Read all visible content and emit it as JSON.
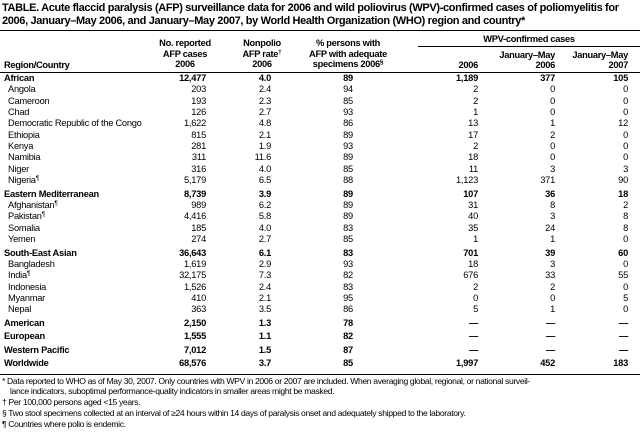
{
  "title": "TABLE. Acute flaccid paralysis (AFP) surveillance data for 2006 and wild poliovirus (WPV)-confirmed cases of poliomyelitis for 2006, January–May 2006, and January–May 2007, by World Health Organization (WHO) region and country*",
  "header": {
    "region_country": "Region/Country",
    "afp_cases": [
      "No. reported",
      "AFP cases",
      "2006"
    ],
    "afp_rate": [
      "Nonpolio",
      "AFP rate",
      "2006"
    ],
    "afp_rate_mark": "†",
    "adequate": [
      "% persons with",
      "AFP with adequate",
      "specimens 2006"
    ],
    "adequate_mark": "§",
    "wpv_group": "WPV-confirmed cases",
    "wpv_2006": "2006",
    "wpv_jm2006": [
      "January–May",
      "2006"
    ],
    "wpv_jm2007": [
      "January–May",
      "2007"
    ]
  },
  "rows": [
    {
      "type": "region",
      "name": "African",
      "mark": "",
      "v": [
        "12,477",
        "4.0",
        "89",
        "1,189",
        "377",
        "105"
      ]
    },
    {
      "type": "sub",
      "name": "Angola",
      "mark": "",
      "v": [
        "203",
        "2.4",
        "94",
        "2",
        "0",
        "0"
      ]
    },
    {
      "type": "sub",
      "name": "Cameroon",
      "mark": "",
      "v": [
        "193",
        "2.3",
        "85",
        "2",
        "0",
        "0"
      ]
    },
    {
      "type": "sub",
      "name": "Chad",
      "mark": "",
      "v": [
        "126",
        "2.7",
        "93",
        "1",
        "0",
        "0"
      ]
    },
    {
      "type": "sub",
      "name": "Democratic Republic of the Congo",
      "mark": "",
      "v": [
        "1,622",
        "4.8",
        "86",
        "13",
        "1",
        "12"
      ]
    },
    {
      "type": "sub",
      "name": "Ethiopia",
      "mark": "",
      "v": [
        "815",
        "2.1",
        "89",
        "17",
        "2",
        "0"
      ]
    },
    {
      "type": "sub",
      "name": "Kenya",
      "mark": "",
      "v": [
        "281",
        "1.9",
        "93",
        "2",
        "0",
        "0"
      ]
    },
    {
      "type": "sub",
      "name": "Namibia",
      "mark": "",
      "v": [
        "311",
        "11.6",
        "89",
        "18",
        "0",
        "0"
      ]
    },
    {
      "type": "sub",
      "name": "Niger",
      "mark": "",
      "v": [
        "316",
        "4.0",
        "85",
        "11",
        "3",
        "3"
      ]
    },
    {
      "type": "sub",
      "name": "Nigeria",
      "mark": "¶",
      "v": [
        "5,179",
        "6.5",
        "88",
        "1,123",
        "371",
        "90"
      ]
    },
    {
      "type": "region",
      "name": "Eastern Mediterranean",
      "mark": "",
      "v": [
        "8,739",
        "3.9",
        "89",
        "107",
        "36",
        "18"
      ]
    },
    {
      "type": "sub",
      "name": "Afghanistan",
      "mark": "¶",
      "v": [
        "989",
        "6.2",
        "89",
        "31",
        "8",
        "2"
      ]
    },
    {
      "type": "sub",
      "name": "Pakistan",
      "mark": "¶",
      "v": [
        "4,416",
        "5.8",
        "89",
        "40",
        "3",
        "8"
      ]
    },
    {
      "type": "sub",
      "name": "Somalia",
      "mark": "",
      "v": [
        "185",
        "4.0",
        "83",
        "35",
        "24",
        "8"
      ]
    },
    {
      "type": "sub",
      "name": "Yemen",
      "mark": "",
      "v": [
        "274",
        "2.7",
        "85",
        "1",
        "1",
        "0"
      ]
    },
    {
      "type": "region",
      "name": "South-East Asian",
      "mark": "",
      "v": [
        "36,643",
        "6.1",
        "83",
        "701",
        "39",
        "60"
      ]
    },
    {
      "type": "sub",
      "name": "Bangladesh",
      "mark": "",
      "v": [
        "1,619",
        "2.9",
        "93",
        "18",
        "3",
        "0"
      ]
    },
    {
      "type": "sub",
      "name": "India",
      "mark": "¶",
      "v": [
        "32,175",
        "7.3",
        "82",
        "676",
        "33",
        "55"
      ]
    },
    {
      "type": "sub",
      "name": "Indonesia",
      "mark": "",
      "v": [
        "1,526",
        "2.4",
        "83",
        "2",
        "2",
        "0"
      ]
    },
    {
      "type": "sub",
      "name": "Myanmar",
      "mark": "",
      "v": [
        "410",
        "2.1",
        "95",
        "0",
        "0",
        "5"
      ]
    },
    {
      "type": "sub",
      "name": "Nepal",
      "mark": "",
      "v": [
        "363",
        "3.5",
        "86",
        "5",
        "1",
        "0"
      ]
    },
    {
      "type": "region",
      "name": "American",
      "mark": "",
      "v": [
        "2,150",
        "1.3",
        "78",
        "—",
        "—",
        "—"
      ]
    },
    {
      "type": "region",
      "name": "European",
      "mark": "",
      "v": [
        "1,555",
        "1.1",
        "82",
        "—",
        "—",
        "—"
      ]
    },
    {
      "type": "region",
      "name": "Western Pacific",
      "mark": "",
      "v": [
        "7,012",
        "1.5",
        "87",
        "—",
        "—",
        "—"
      ]
    },
    {
      "type": "region",
      "name": "Worldwide",
      "mark": "",
      "v": [
        "68,576",
        "3.7",
        "85",
        "1,997",
        "452",
        "183"
      ]
    }
  ],
  "footnotes": [
    "* Data reported to WHO as of May 30, 2007. Only countries with WPV in 2006 or 2007 are included. When averaging global, regional, or national surveil-",
    "lance indicators, suboptimal performance-quality indicators in smaller areas might be masked.",
    "† Per 100,000 persons aged <15 years.",
    "§ Two stool specimens collected at an interval of ≥24 hours within 14 days of paralysis onset and adequately shipped to the laboratory.",
    "¶ Countries where polio is endemic."
  ]
}
